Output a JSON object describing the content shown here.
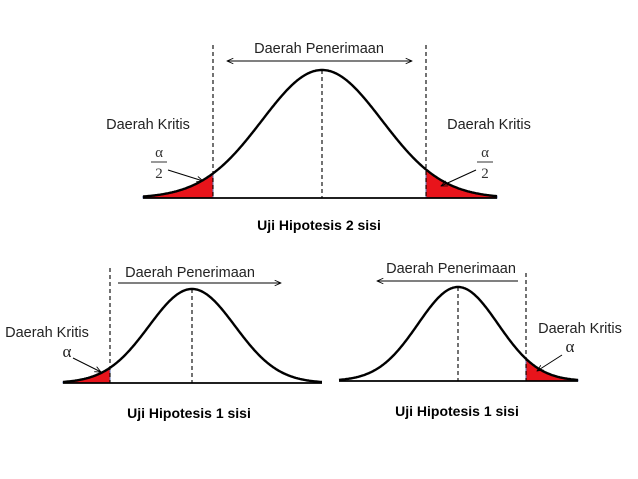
{
  "diagrams": [
    {
      "id": "two-sided",
      "caption": "Uji Hipotesis 2 sisi",
      "acceptance_label": "Daerah Penerimaan",
      "left_critical_label": "Daerah Kritis",
      "right_critical_label": "Daerah Kritis",
      "left_alpha_numerator": "α",
      "left_alpha_denominator": "2",
      "right_alpha_numerator": "α",
      "right_alpha_denominator": "2"
    },
    {
      "id": "one-sided-left",
      "caption": "Uji Hipotesis 1 sisi",
      "acceptance_label": "Daerah Penerimaan",
      "critical_label": "Daerah Kritis",
      "alpha": "α"
    },
    {
      "id": "one-sided-right",
      "caption": "Uji Hipotesis 1 sisi",
      "acceptance_label": "Daerah Penerimaan",
      "critical_label": "Daerah Kritis",
      "alpha": "α"
    }
  ],
  "colors": {
    "critical_fill": "#e8141b",
    "curve": "#000000",
    "shade_edge": "#5a6fb0"
  }
}
